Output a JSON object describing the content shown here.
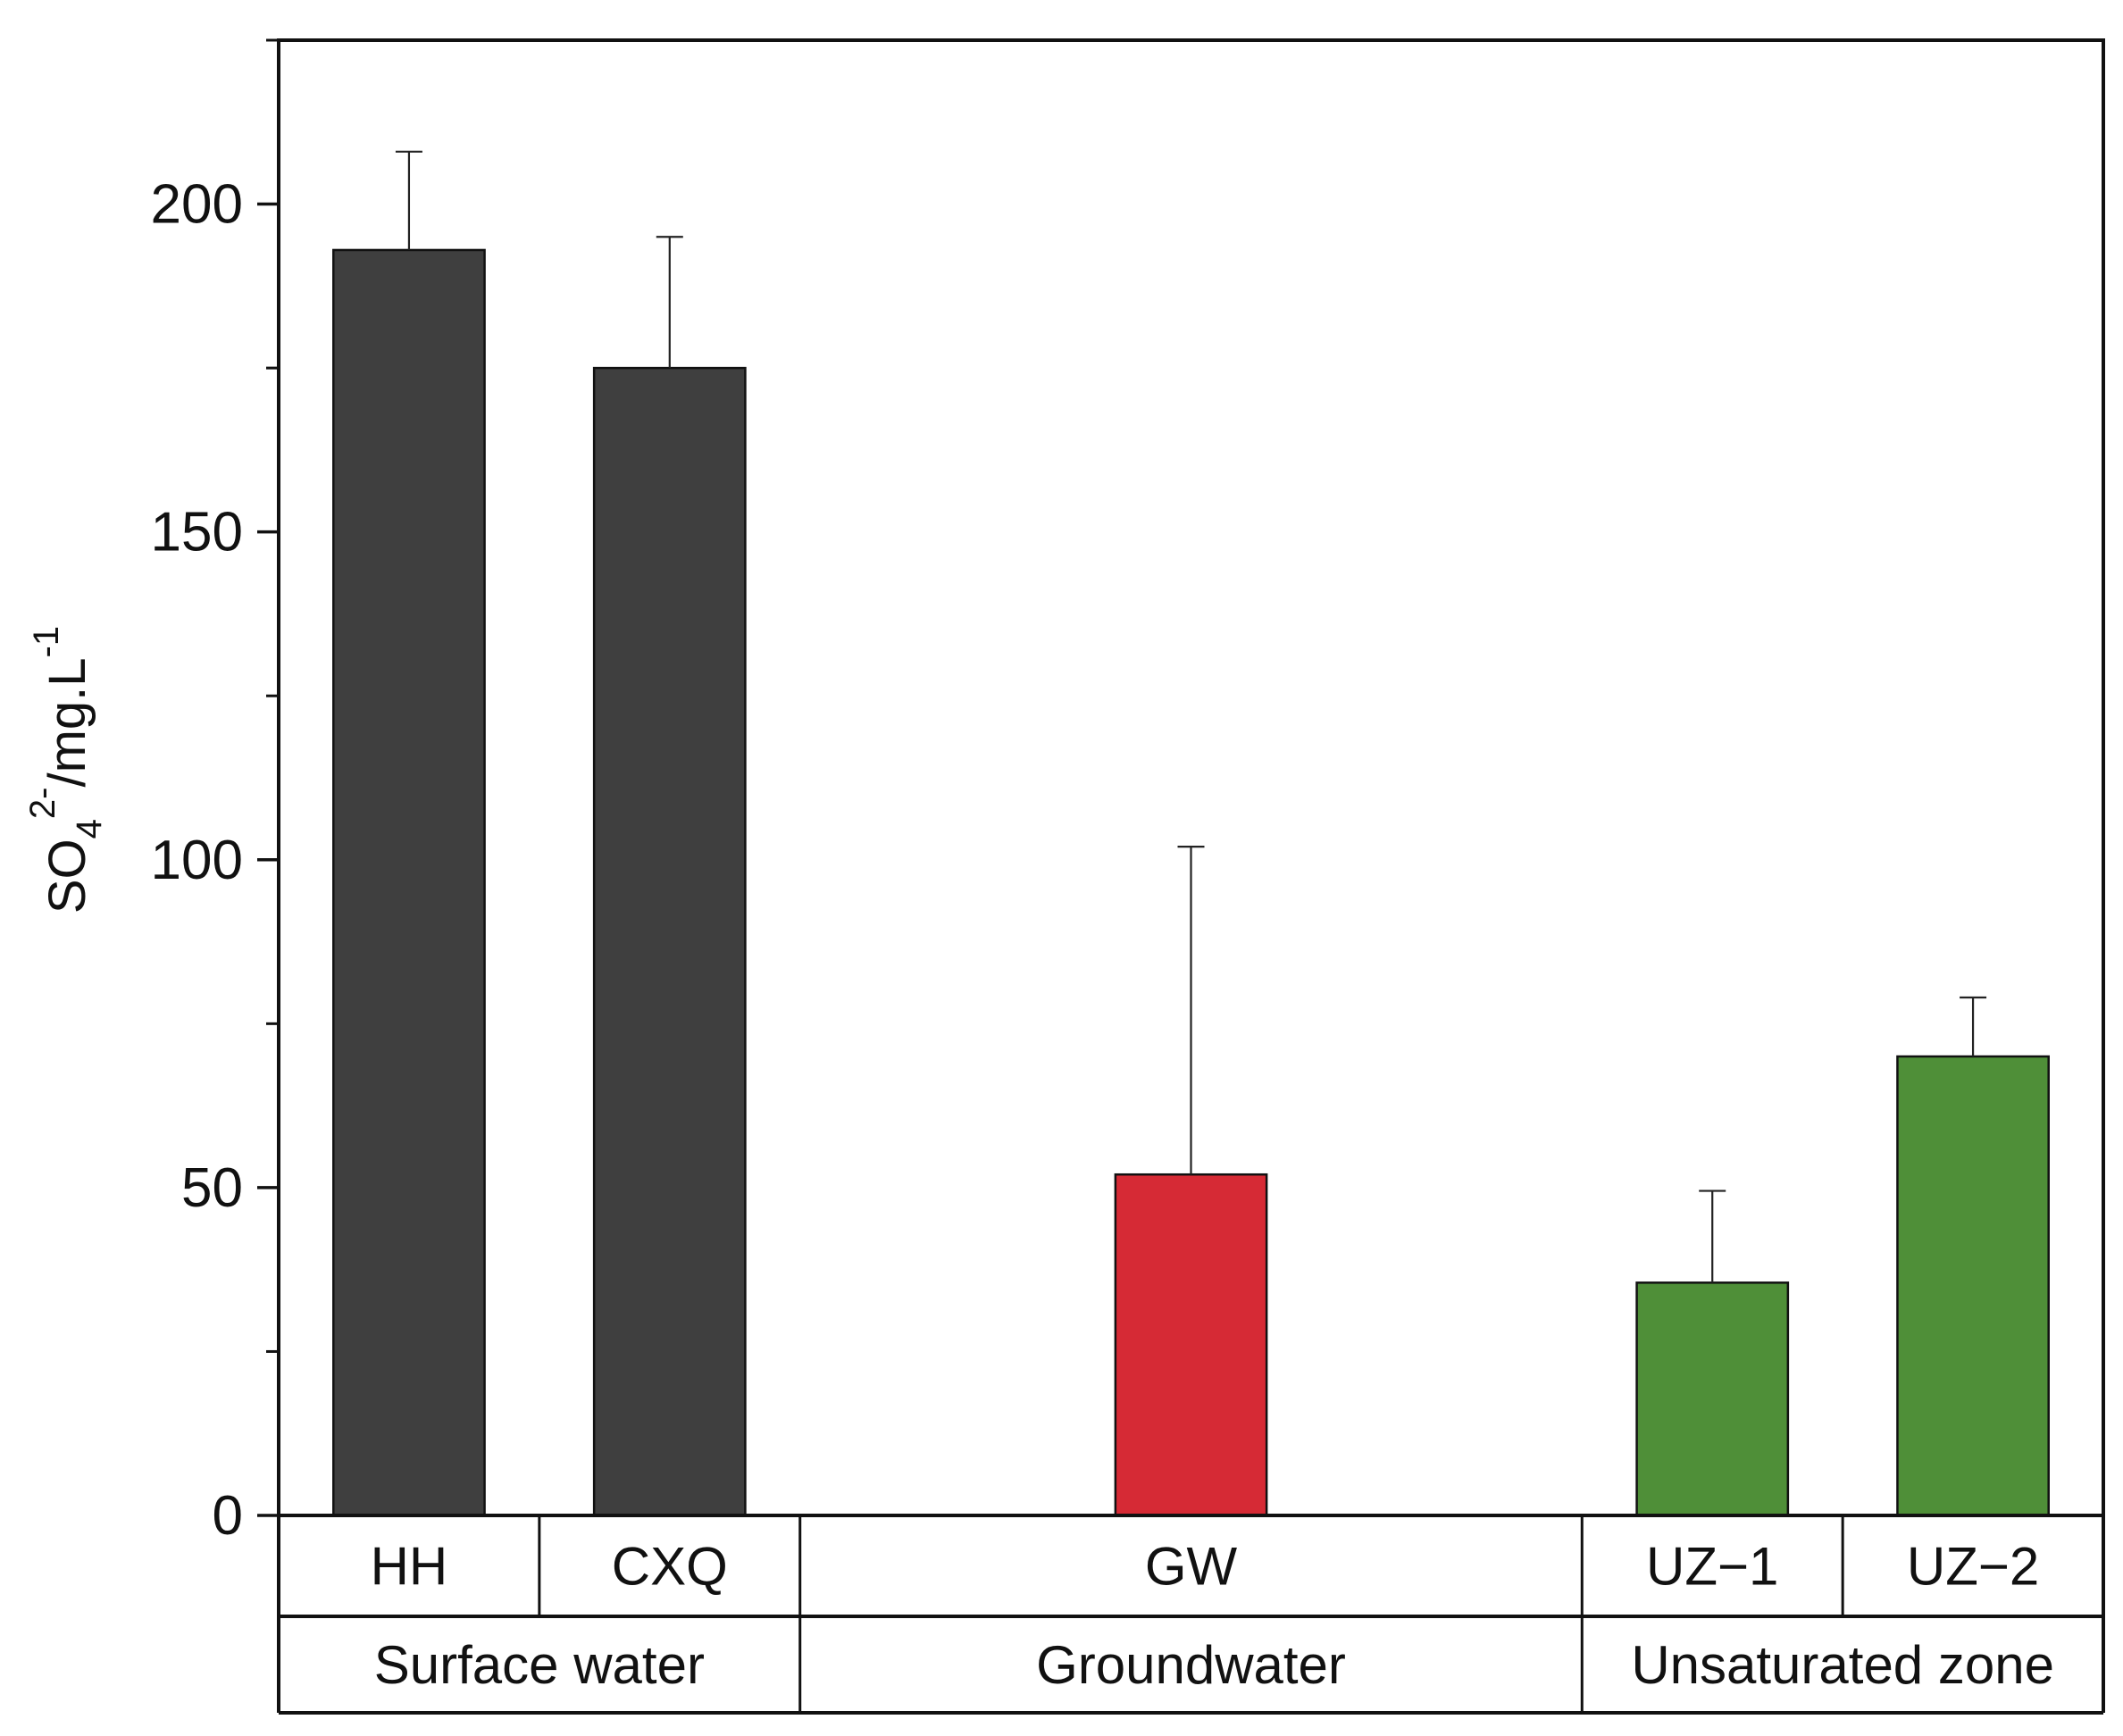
{
  "chart_data": {
    "type": "bar",
    "title": "",
    "xlabel": "",
    "ylabel": {
      "main": "SO",
      "sub": "4",
      "sup": "2-",
      "unit": "/mg.L",
      "unit_sup": "-1"
    },
    "ylim": [
      0,
      225
    ],
    "y_ticks": [
      0,
      50,
      100,
      150,
      200
    ],
    "y_minor_ticks": [
      25,
      75,
      125,
      175,
      225
    ],
    "grid": false,
    "categories": [
      "HH",
      "CXQ",
      "GW",
      "UZ−1",
      "UZ−2"
    ],
    "values": [
      193,
      175,
      52,
      35.5,
      70
    ],
    "error_plus": [
      15,
      20,
      50,
      14,
      9
    ],
    "colors": [
      "#3f3f3f",
      "#3f3f3f",
      "#d62a35",
      "#4f8f38",
      "#4f8f38"
    ],
    "x_positions": [
      0.5,
      1.5,
      3.5,
      5.5,
      6.5
    ],
    "groups": [
      {
        "label": "Surface water",
        "from": 0,
        "to": 2
      },
      {
        "label": "Groundwater",
        "from": 2,
        "to": 5
      },
      {
        "label": "Unsaturated zone",
        "from": 5,
        "to": 7
      }
    ],
    "sample_boundaries": [
      0,
      1,
      2,
      5,
      6,
      7
    ],
    "x_range": [
      0,
      7
    ]
  }
}
